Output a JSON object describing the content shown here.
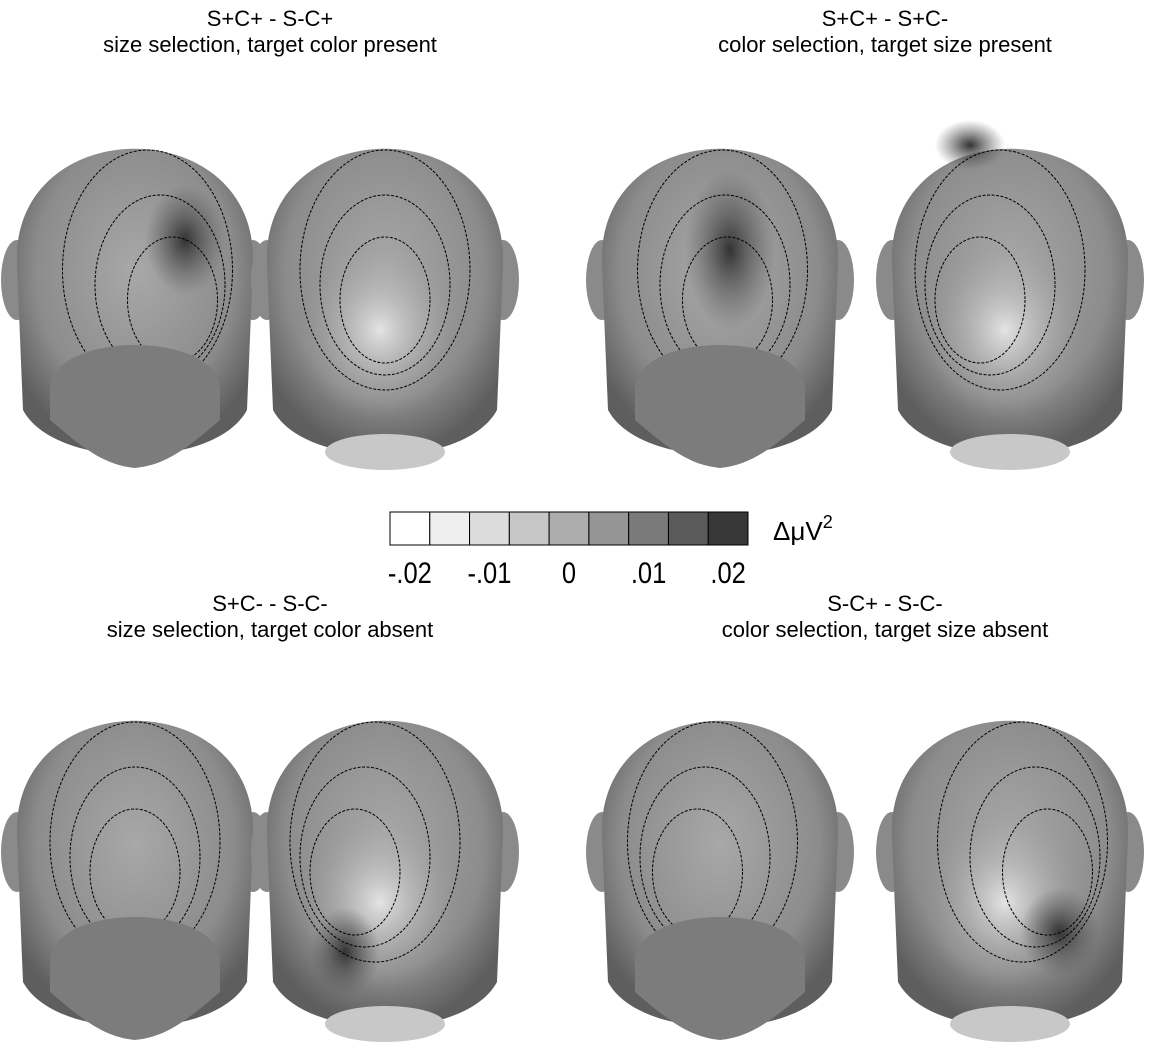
{
  "panels": [
    {
      "title": "S+C+ - S-C+",
      "subtitle": "size selection, target color present"
    },
    {
      "title": "S+C+ - S+C-",
      "subtitle": "color selection, target size present"
    },
    {
      "title": "S+C- - S-C-",
      "subtitle": "size selection, target color absent"
    },
    {
      "title": "S-C+ - S-C-",
      "subtitle": "color selection, target size absent"
    }
  ],
  "colorbar": {
    "colors": [
      "#ffffff",
      "#efefef",
      "#dcdcdc",
      "#c6c6c6",
      "#adadad",
      "#959595",
      "#7a7a7a",
      "#5a5a5a",
      "#383838"
    ],
    "ticks": [
      {
        "value": -0.02,
        "label": "-.02"
      },
      {
        "value": -0.01,
        "label": "-.01"
      },
      0,
      {
        "value": 0.01,
        "label": ".01"
      },
      {
        "value": 0.02,
        "label": ".02"
      }
    ],
    "unit": {
      "base": "ΔμV",
      "sup": "2"
    }
  }
}
